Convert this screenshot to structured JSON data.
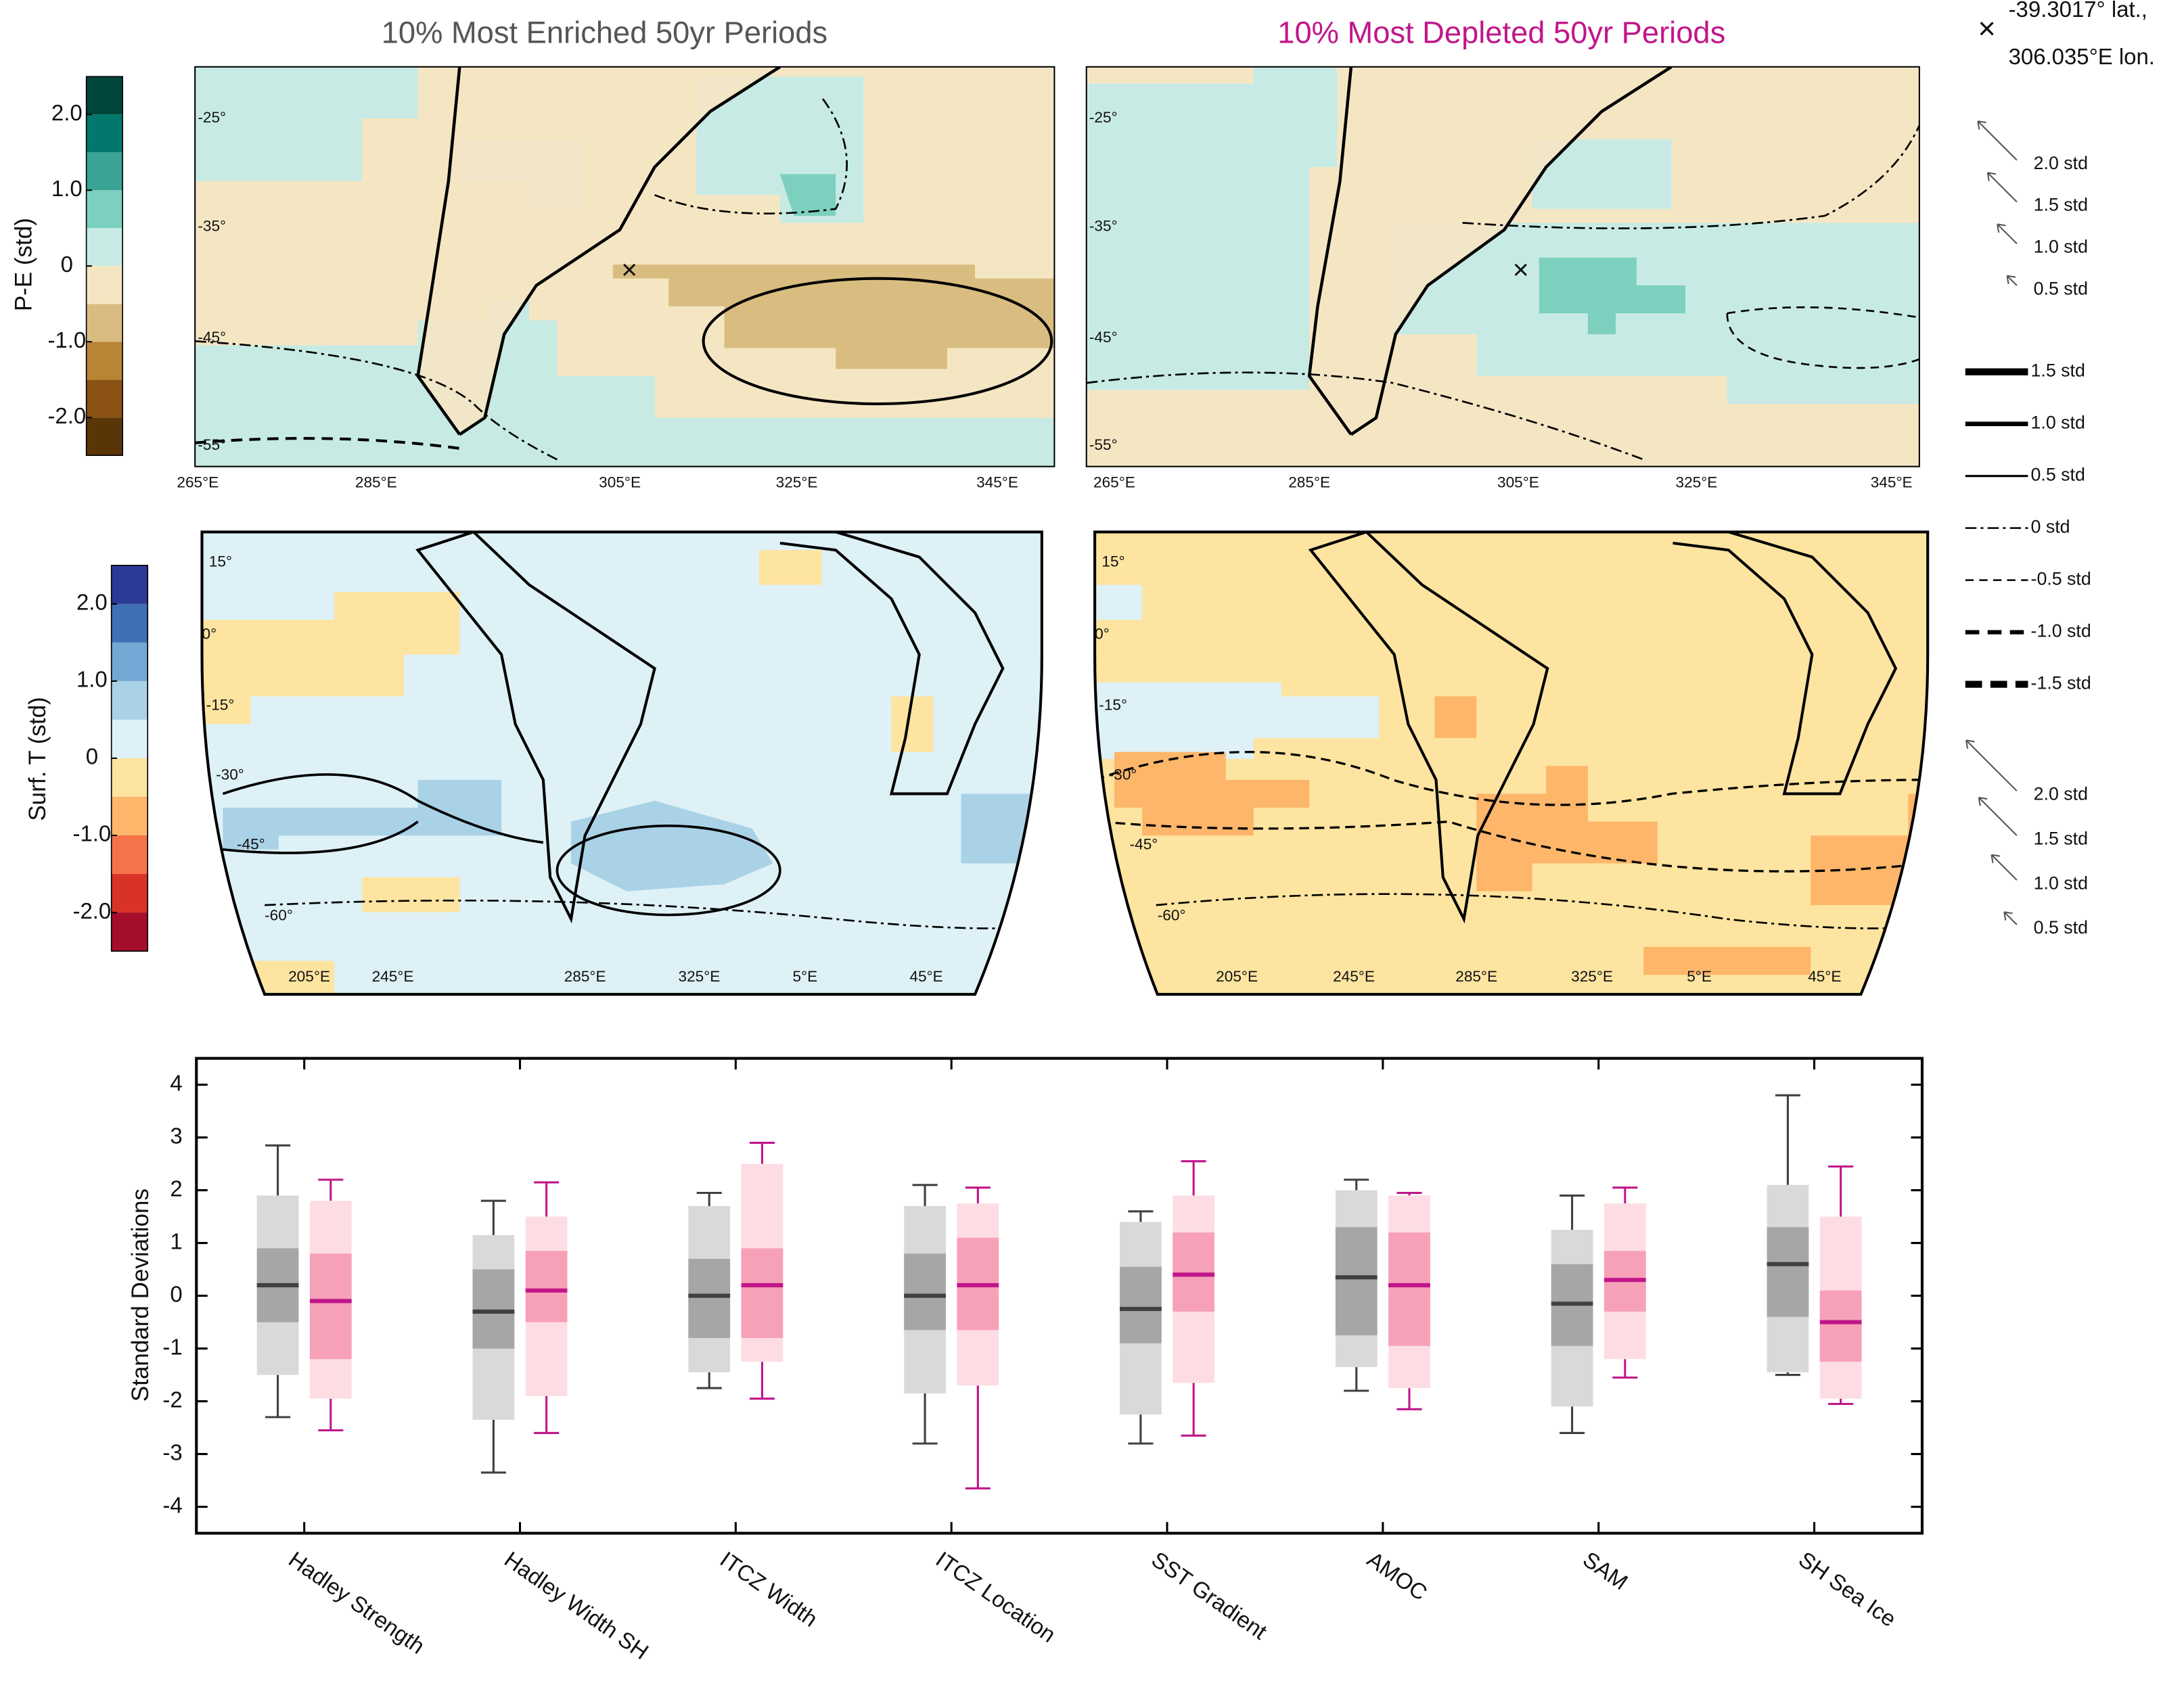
{
  "titles": {
    "enriched": "10% Most Enriched 50yr Periods",
    "depleted": "10% Most Depleted 50yr Periods"
  },
  "marker": {
    "symbol": "×",
    "lat": "-39.3017° lat.,",
    "lon": "306.035°E lon."
  },
  "pe_map": {
    "xticks": [
      "265°E",
      "285°E",
      "305°E",
      "325°E",
      "345°E"
    ],
    "yticks": [
      "-25°",
      "-35°",
      "-45°",
      "-55°"
    ]
  },
  "t_map": {
    "xticks": [
      "205°E",
      "245°E",
      "285°E",
      "325°E",
      "5°E",
      "45°E"
    ],
    "yticks": [
      "15°",
      "0°",
      "-15°",
      "-30°",
      "-45°",
      "-60°"
    ]
  },
  "pe_colorbar": {
    "label": "P-E (std)",
    "lim": [
      -2.5,
      2.5
    ],
    "colors": [
      "#5a3508",
      "#8a5313",
      "#b88535",
      "#d9bd80",
      "#f5e6c3",
      "#c7ebe4",
      "#7dd0bf",
      "#3aa393",
      "#01786b",
      "#00463a"
    ],
    "ticks": [
      {
        "value": -2,
        "label": "-2.0"
      },
      {
        "value": -1,
        "label": "-1.0"
      },
      0,
      {
        "value": 1,
        "label": "1.0"
      },
      {
        "value": 2,
        "label": "2.0"
      }
    ]
  },
  "t_colorbar": {
    "label": "Surf. T (std)",
    "lim": [
      -2.5,
      2.5
    ],
    "colors": [
      "#a50e2a",
      "#d93328",
      "#f6734a",
      "#fdb66a",
      "#fde4a0",
      "#def1f7",
      "#a9d2e6",
      "#74a7d4",
      "#3f6fb5",
      "#2b3a96"
    ],
    "ticks": [
      {
        "value": -2,
        "label": "-2.0"
      },
      {
        "value": -1,
        "label": "-1.0"
      },
      0,
      {
        "value": 1,
        "label": "1.0"
      },
      {
        "value": 2,
        "label": "2.0"
      }
    ]
  },
  "legend": {
    "arrows": [
      "2.0 std",
      "1.5 std",
      "1.0 std",
      "0.5 std"
    ],
    "contours": [
      "1.5 std",
      "1.0 std",
      "0.5 std",
      "0 std",
      "-0.5 std",
      "-1.0 std",
      "-1.5 std"
    ]
  },
  "chart_data": {
    "type": "box",
    "ylabel": "Standard Deviations",
    "categories": [
      "Hadley Strength",
      "Hadley Width SH",
      "ITCZ Width",
      "ITCZ Location",
      "SST Gradient",
      "AMOC",
      "SAM",
      "SH Sea Ice"
    ],
    "ylim": [
      -4.5,
      4.5
    ],
    "yticks": [
      -4,
      -3,
      -2,
      -1,
      0,
      1,
      2,
      3,
      4
    ],
    "series": [
      {
        "color": "#404040",
        "outer_color": "#d9d9d9",
        "inner_color": "#a6a6a6",
        "whisker_low": [
          -2.3,
          -3.35,
          -1.75,
          -2.8,
          -2.8,
          -1.8,
          -2.6,
          -1.5
        ],
        "outer_low": [
          -1.5,
          -2.35,
          -1.45,
          -1.85,
          -2.25,
          -1.35,
          -2.1,
          -1.45
        ],
        "q1": [
          -0.5,
          -1.0,
          -0.8,
          -0.65,
          -0.9,
          -0.75,
          -0.95,
          -0.4
        ],
        "median": [
          0.2,
          -0.3,
          0,
          0,
          -0.25,
          0.35,
          -0.15,
          0.6
        ],
        "q3": [
          0.9,
          0.5,
          0.7,
          0.8,
          0.55,
          1.3,
          0.6,
          1.3
        ],
        "outer_high": [
          1.9,
          1.15,
          1.7,
          1.7,
          1.4,
          2.0,
          1.25,
          2.1
        ],
        "whisker_high": [
          2.85,
          1.8,
          1.95,
          2.1,
          1.6,
          2.2,
          1.9,
          3.8
        ]
      },
      {
        "color": "#c0168a",
        "outer_color": "#fddde3",
        "inner_color": "#f7a1b8",
        "whisker_low": [
          -2.55,
          -2.6,
          -1.95,
          -3.65,
          -2.65,
          -2.15,
          -1.55,
          -2.05
        ],
        "outer_low": [
          -1.95,
          -1.9,
          -1.25,
          -1.7,
          -1.65,
          -1.75,
          -1.2,
          -1.95
        ],
        "q1": [
          -1.2,
          -0.5,
          -0.8,
          -0.65,
          -0.3,
          -0.95,
          -0.3,
          -1.25
        ],
        "median": [
          -0.1,
          0.1,
          0.2,
          0.2,
          0.4,
          0.2,
          0.3,
          -0.5
        ],
        "q3": [
          0.8,
          0.85,
          0.9,
          1.1,
          1.2,
          1.2,
          0.85,
          0.1
        ],
        "outer_high": [
          1.8,
          1.5,
          2.5,
          1.75,
          1.9,
          1.9,
          1.75,
          1.5
        ],
        "whisker_high": [
          2.2,
          2.15,
          2.9,
          2.05,
          2.55,
          1.95,
          2.05,
          2.45
        ]
      }
    ]
  }
}
